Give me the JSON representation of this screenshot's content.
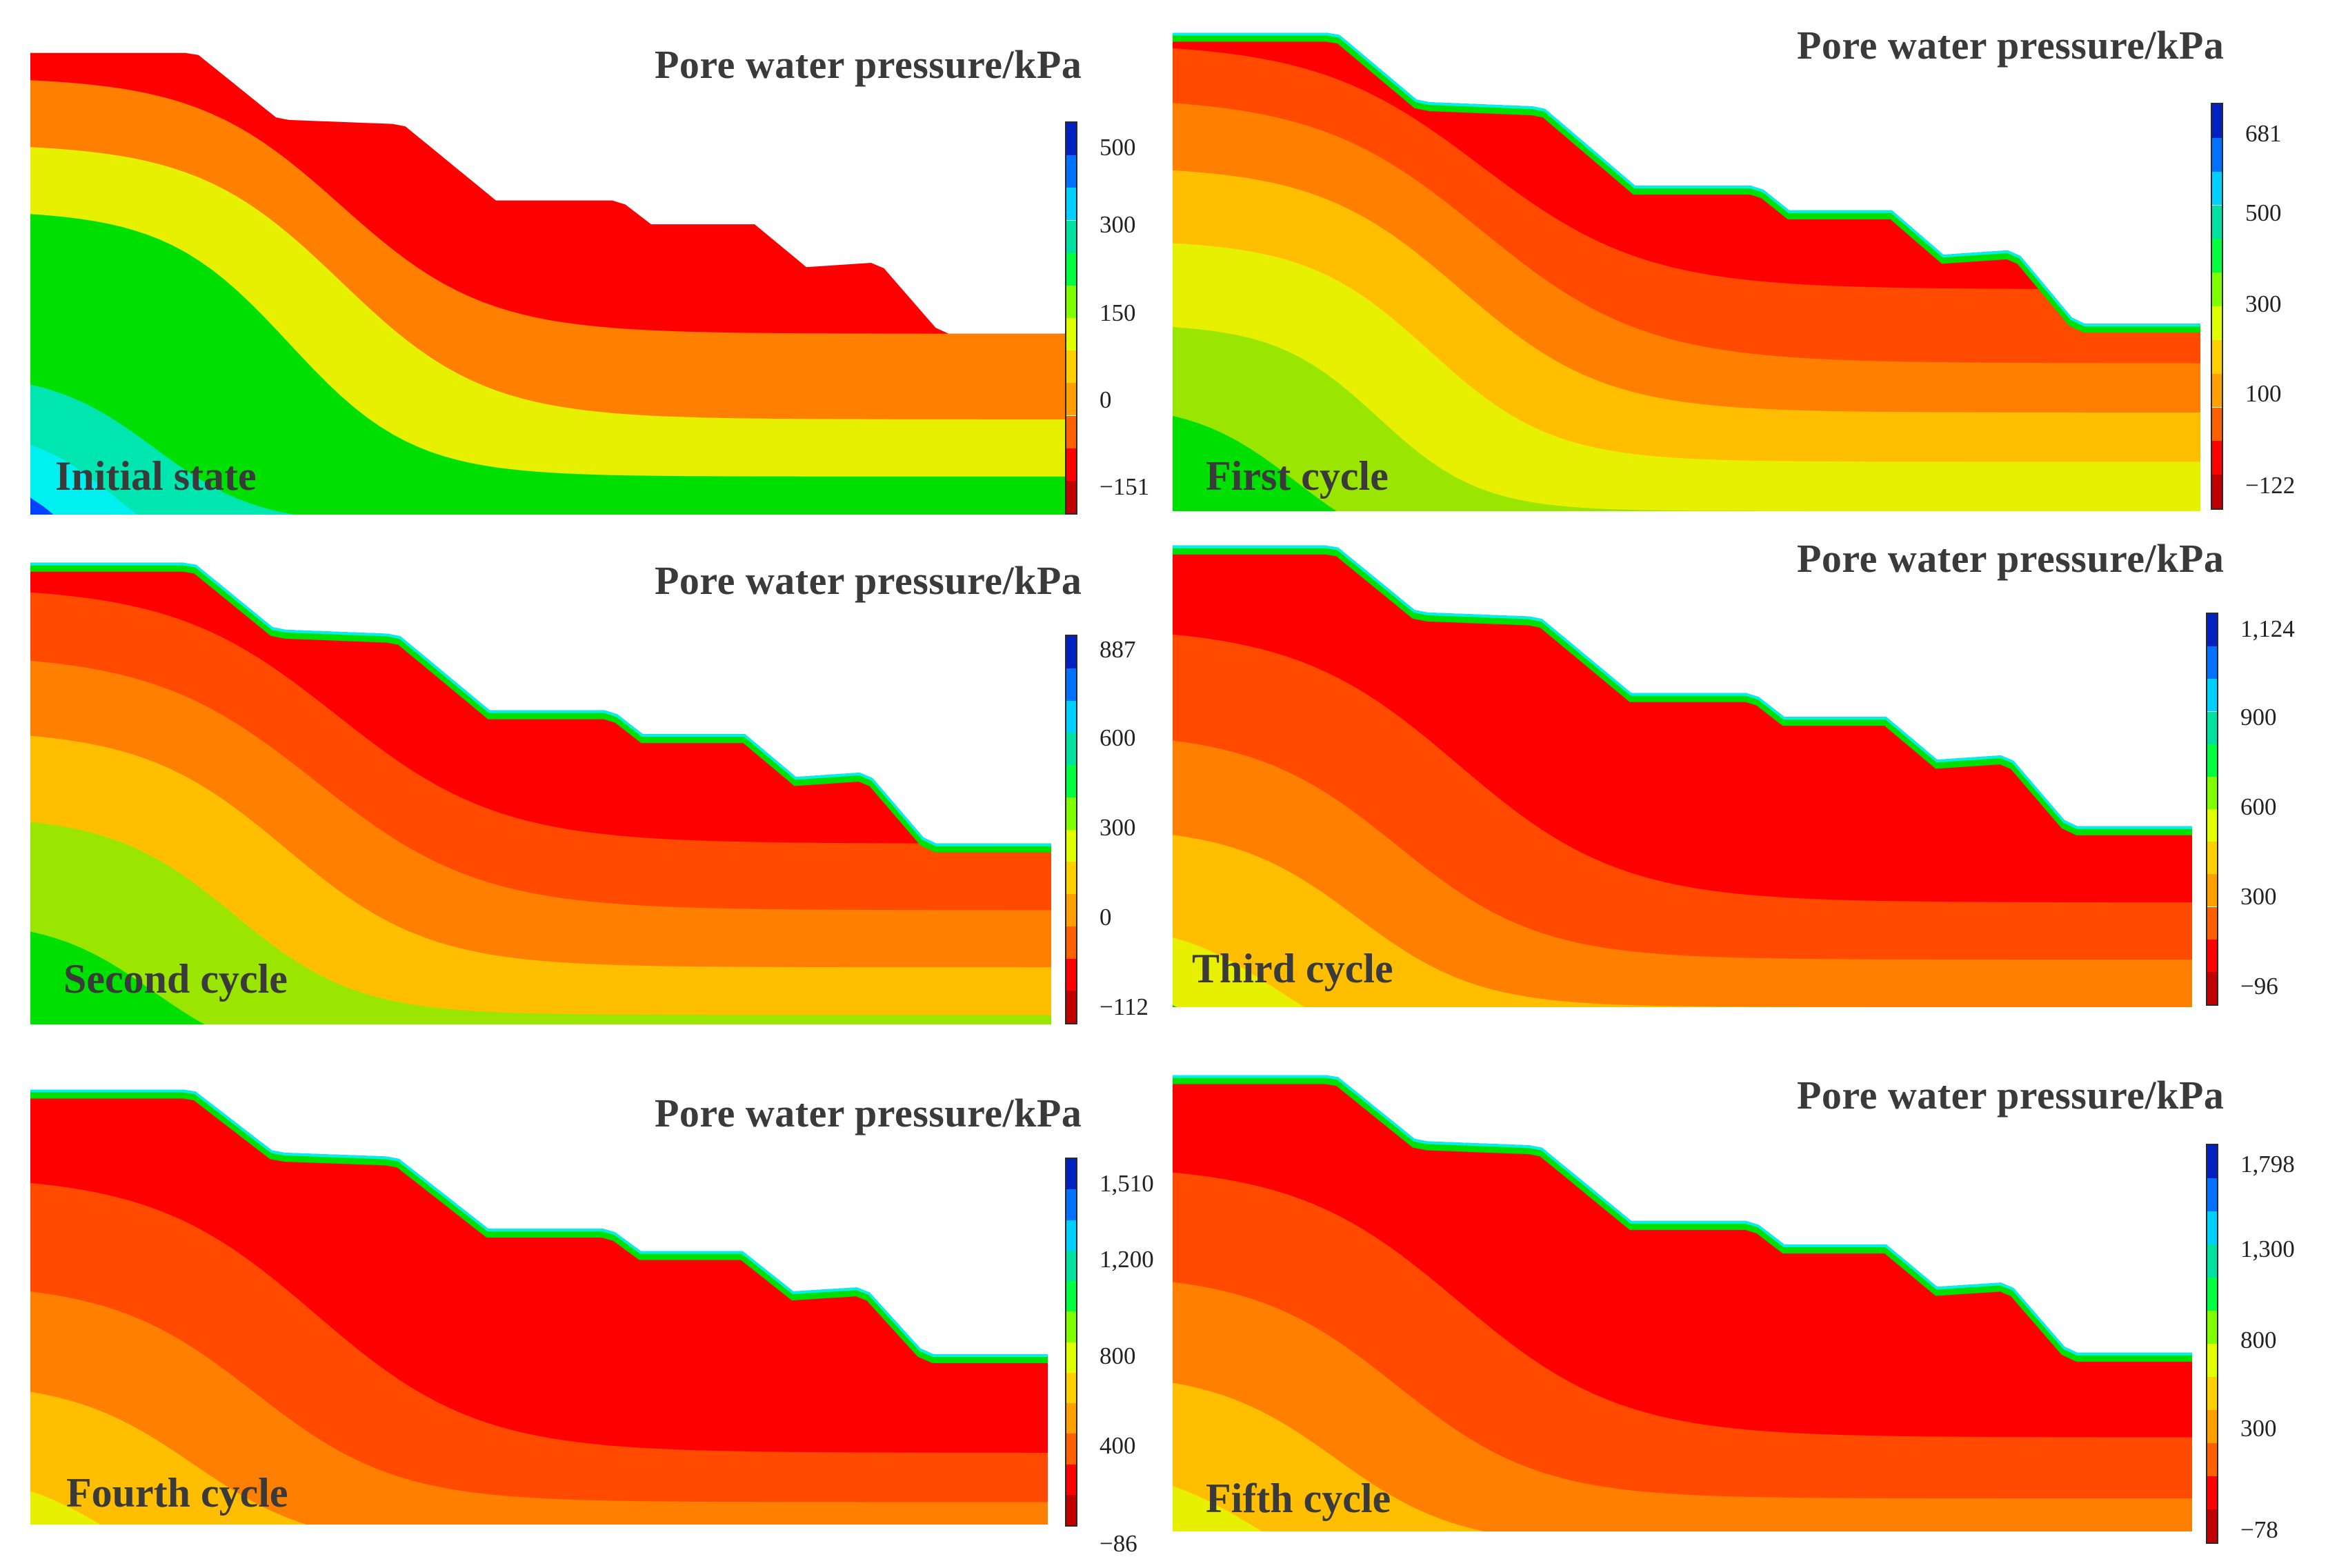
{
  "colors": {
    "red": "#ff0000",
    "red_orange": "#ff4a00",
    "orange": "#ff7f00",
    "yellow_orange": "#ffbf00",
    "yellow": "#e6f000",
    "lime": "#9be600",
    "green": "#00e000",
    "teal": "#00e6b0",
    "cyan": "#00f0f0",
    "blue": "#0044ff",
    "dark_blue": "#0000c0"
  },
  "colorbar_scale": [
    "#c00000",
    "#ff0000",
    "#ff6000",
    "#ffa000",
    "#ffd000",
    "#e0ff00",
    "#80ff00",
    "#00ff40",
    "#00e0a0",
    "#00d0ff",
    "#0070ff",
    "#0020c0"
  ],
  "panels": [
    {
      "id": "initial",
      "title": "Pore water pressure/kPa",
      "label": "Initial state",
      "colorbar_ticks": [
        "500",
        "300",
        "150",
        "0",
        "−151"
      ],
      "bands": [
        "red",
        "orange",
        "yellow",
        "green",
        "teal",
        "cyan",
        "blue"
      ]
    },
    {
      "id": "first",
      "title": "Pore water pressure/kPa",
      "label": "First cycle",
      "colorbar_ticks": [
        "681",
        "500",
        "300",
        "100",
        "−122"
      ],
      "bands": [
        "red",
        "red_orange",
        "orange",
        "yellow_orange",
        "yellow",
        "lime",
        "green"
      ]
    },
    {
      "id": "second",
      "title": "Pore water pressure/kPa",
      "label": "Second cycle",
      "colorbar_ticks": [
        "887",
        "600",
        "300",
        "0",
        "−112"
      ],
      "bands": [
        "red",
        "red_orange",
        "orange",
        "yellow_orange",
        "lime",
        "green"
      ]
    },
    {
      "id": "third",
      "title": "Pore water pressure/kPa",
      "label": "Third cycle",
      "colorbar_ticks": [
        "1,124",
        "900",
        "600",
        "300",
        "−96"
      ],
      "bands": [
        "red",
        "red_orange",
        "orange",
        "yellow_orange",
        "yellow",
        "green"
      ]
    },
    {
      "id": "fourth",
      "title": "Pore water pressure/kPa",
      "label": "Fourth cycle",
      "colorbar_ticks": [
        "1,510",
        "1,200",
        "800",
        "400",
        "−86"
      ],
      "bands": [
        "red",
        "red_orange",
        "orange",
        "yellow_orange",
        "yellow"
      ]
    },
    {
      "id": "fifth",
      "title": "Pore water pressure/kPa",
      "label": "Fifth cycle",
      "colorbar_ticks": [
        "1,798",
        "1,300",
        "800",
        "300",
        "−78"
      ],
      "bands": [
        "red",
        "red_orange",
        "orange",
        "yellow_orange",
        "yellow"
      ]
    }
  ]
}
